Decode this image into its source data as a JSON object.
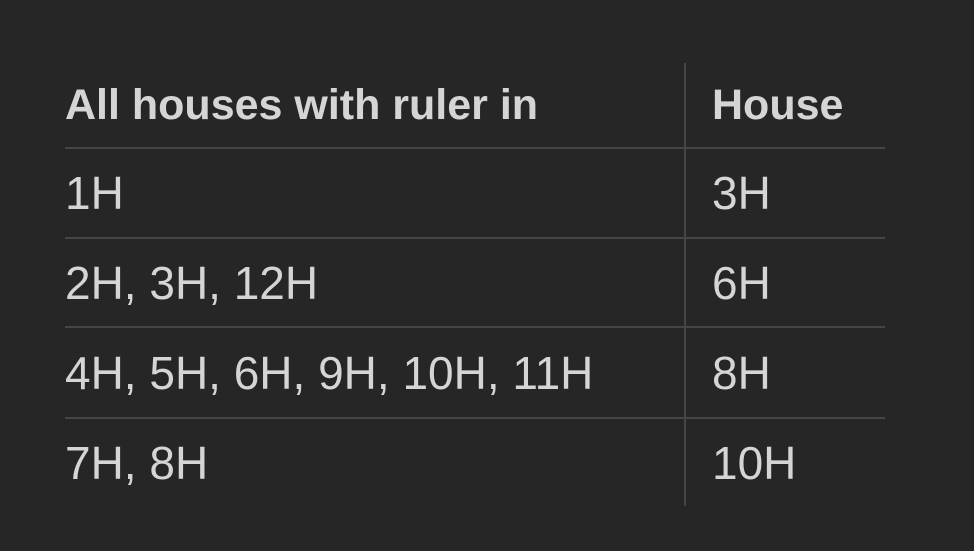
{
  "page": {
    "background": "#262626"
  },
  "colors": {
    "text": "#d5d5d5",
    "divider": "#454545"
  },
  "table": {
    "columns": [
      {
        "label": "All houses with ruler in"
      },
      {
        "label": "House"
      }
    ],
    "rows": [
      {
        "houses": "1H",
        "house": "3H"
      },
      {
        "houses": "2H, 3H, 12H",
        "house": "6H"
      },
      {
        "houses": "4H, 5H, 6H, 9H, 10H, 11H",
        "house": "8H"
      },
      {
        "houses": "7H, 8H",
        "house": "10H"
      }
    ]
  }
}
